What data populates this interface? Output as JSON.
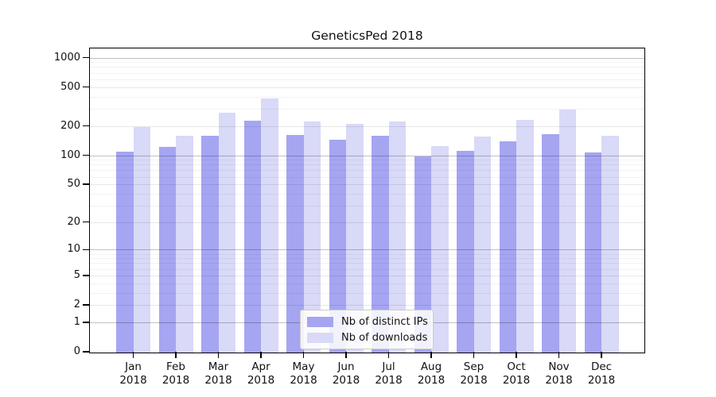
{
  "chart_data": {
    "type": "bar",
    "title": "GeneticsPed 2018",
    "categories": [
      "Jan",
      "Feb",
      "Mar",
      "Apr",
      "May",
      "Jun",
      "Jul",
      "Aug",
      "Sep",
      "Oct",
      "Nov",
      "Dec"
    ],
    "category_year": "2018",
    "series": [
      {
        "name": "Nb of distinct IPs",
        "color": "#a5a5f2",
        "values": [
          110,
          124,
          162,
          230,
          164,
          146,
          161,
          99,
          113,
          143,
          169,
          109
        ]
      },
      {
        "name": "Nb of downloads",
        "color": "#d9d9f8",
        "values": [
          198,
          162,
          277,
          392,
          226,
          216,
          226,
          127,
          158,
          235,
          302,
          161
        ]
      }
    ],
    "y_ticks": [
      0,
      1,
      2,
      5,
      10,
      20,
      50,
      100,
      200,
      500,
      1000
    ],
    "yscale": "log1p",
    "ylim": [
      0,
      1240
    ],
    "grid": true,
    "legend_position": "lower-center"
  }
}
